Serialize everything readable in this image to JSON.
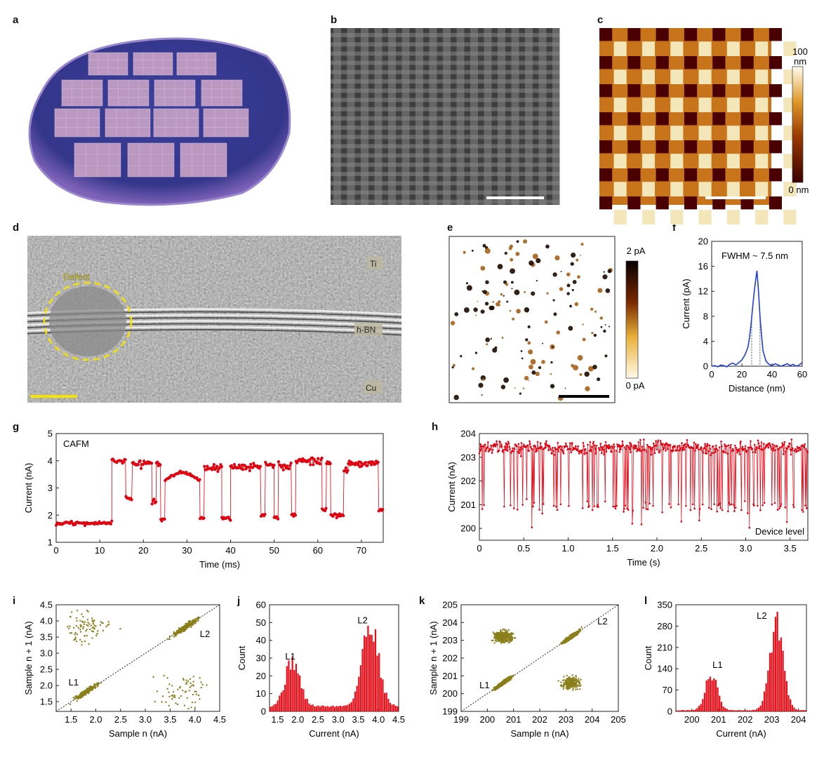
{
  "panels": {
    "a": {
      "letter": "a"
    },
    "b": {
      "letter": "b"
    },
    "c": {
      "letter": "c",
      "colorbar": {
        "max": "100",
        "max_unit": "nm",
        "min": "0 nm"
      }
    },
    "d": {
      "letter": "d",
      "labels": {
        "defect": "Defect",
        "ti": "Ti",
        "hbn": "h-BN",
        "cu": "Cu"
      }
    },
    "e": {
      "letter": "e",
      "colorbar": {
        "max": "2 pA",
        "min": "0 pA"
      }
    },
    "f": {
      "letter": "f"
    },
    "g": {
      "letter": "g"
    },
    "h": {
      "letter": "h"
    },
    "i": {
      "letter": "i"
    },
    "j": {
      "letter": "j"
    },
    "k": {
      "letter": "k"
    },
    "l": {
      "letter": "l"
    }
  },
  "colors": {
    "red": "#e0000f",
    "blue": "#1f3fd6",
    "olive": "#8a7f1a",
    "bar": "#e8101a",
    "yellow": "#f4e200"
  },
  "chart_data": [
    {
      "id": "f",
      "type": "line",
      "annotation": "FWHM ~ 7.5 nm",
      "xlabel": "Distance (nm)",
      "ylabel": "Current (pA)",
      "xlim": [
        0,
        60
      ],
      "ylim": [
        0,
        20
      ],
      "xticks": [
        "0",
        "20",
        "40",
        "60"
      ],
      "yticks": [
        "0",
        "4",
        "8",
        "12",
        "16",
        "20"
      ],
      "x": [
        0,
        2,
        4,
        6,
        8,
        10,
        12,
        14,
        16,
        18,
        20,
        22,
        24,
        25,
        26,
        27,
        28,
        29,
        30,
        31,
        32,
        33,
        34,
        36,
        38,
        40,
        42,
        44,
        46,
        48,
        50,
        52,
        54,
        56,
        58,
        60
      ],
      "y": [
        0,
        0.1,
        -0.1,
        0.2,
        0.1,
        -0.1,
        0.3,
        0.5,
        0.2,
        0.6,
        1.0,
        1.8,
        3.0,
        4.5,
        6.5,
        9.0,
        11.5,
        13.5,
        15.3,
        12.0,
        8.0,
        5.0,
        2.5,
        0.8,
        0.3,
        0.1,
        0.4,
        0.2,
        0.0,
        0.2,
        0.4,
        0.1,
        0.3,
        0.0,
        0.2,
        0.6
      ],
      "fwhm_lines": [
        26.5,
        32
      ]
    },
    {
      "id": "g",
      "type": "line",
      "annotation": "CAFM",
      "xlabel": "Time (ms)",
      "ylabel": "Current (nA)",
      "xlim": [
        0,
        75
      ],
      "ylim": [
        1,
        5
      ],
      "xticks": [
        "0",
        "10",
        "20",
        "30",
        "40",
        "50",
        "60",
        "70"
      ],
      "yticks": [
        "1",
        "2",
        "3",
        "4",
        "5"
      ],
      "segments": [
        [
          0,
          12.8,
          1.7
        ],
        [
          12.8,
          16,
          4.0
        ],
        [
          16,
          17.5,
          2.6
        ],
        [
          17.5,
          22,
          3.9
        ],
        [
          22,
          23,
          2.5
        ],
        [
          23,
          24,
          3.9
        ],
        [
          24,
          25,
          1.8
        ],
        [
          25,
          33,
          3.4
        ],
        [
          33,
          34,
          1.9
        ],
        [
          34,
          38,
          3.7
        ],
        [
          38,
          40,
          1.9
        ],
        [
          40,
          47,
          3.8
        ],
        [
          47,
          48,
          2.0
        ],
        [
          48,
          50,
          3.9
        ],
        [
          50,
          51,
          1.9
        ],
        [
          51,
          54,
          3.8
        ],
        [
          54,
          55,
          2.0
        ],
        [
          55,
          61,
          4.0
        ],
        [
          61,
          62,
          2.2
        ],
        [
          62,
          63,
          3.9
        ],
        [
          63,
          66,
          2.0
        ],
        [
          66,
          67,
          3.7
        ],
        [
          67,
          74,
          3.9
        ],
        [
          74,
          75,
          2.2
        ]
      ]
    },
    {
      "id": "h",
      "type": "line",
      "annotation": "Device level",
      "xlabel": "Time (s)",
      "ylabel": "Current (nA)",
      "xlim": [
        0,
        3.7
      ],
      "ylim": [
        199.5,
        204
      ],
      "xticks": [
        "0",
        "0.5",
        "1.0",
        "1.5",
        "2.0",
        "2.5",
        "3.0",
        "3.5"
      ],
      "yticks": [
        "200",
        "201",
        "202",
        "203",
        "204"
      ],
      "high_level": 203.4,
      "low_level": 200.9
    },
    {
      "id": "i",
      "type": "scatter",
      "xlabel": "Sample n (nA)",
      "ylabel": "Sample n + 1 (nA)",
      "xlim": [
        1.2,
        4.5
      ],
      "ylim": [
        1.2,
        4.5
      ],
      "xticks": [
        "1.5",
        "2.0",
        "2.5",
        "3.0",
        "3.5",
        "4.0",
        "4.5"
      ],
      "yticks": [
        "1.5",
        "2.0",
        "2.5",
        "3.0",
        "3.5",
        "4.0",
        "4.5"
      ],
      "clusters": [
        {
          "label": "L1",
          "center": 1.8
        },
        {
          "label": "L2",
          "center": 3.8
        }
      ]
    },
    {
      "id": "j",
      "type": "bar",
      "xlabel": "Current (nA)",
      "ylabel": "Count",
      "xlim": [
        1.3,
        4.5
      ],
      "ylim": [
        0,
        60
      ],
      "xticks": [
        "1.5",
        "2.0",
        "2.5",
        "3.0",
        "3.5",
        "4.0",
        "4.5"
      ],
      "yticks": [
        "0",
        "10",
        "20",
        "30",
        "40",
        "50",
        "60"
      ],
      "peaks": [
        {
          "label": "L1",
          "center": 1.85,
          "height": 26,
          "width": 0.18
        },
        {
          "label": "L2",
          "center": 3.78,
          "height": 48,
          "width": 0.2
        }
      ],
      "baseline": 3
    },
    {
      "id": "k",
      "type": "scatter",
      "xlabel": "Sample n (nA)",
      "ylabel": "Sample n + 1 (nA)",
      "xlim": [
        199,
        205
      ],
      "ylim": [
        199,
        205
      ],
      "xticks": [
        "199",
        "200",
        "201",
        "202",
        "203",
        "204",
        "205"
      ],
      "yticks": [
        "199",
        "200",
        "201",
        "202",
        "203",
        "204",
        "205"
      ],
      "clusters": [
        {
          "label": "L1",
          "center": 200.6
        },
        {
          "label": "L2",
          "center": 203.2
        }
      ]
    },
    {
      "id": "l",
      "type": "bar",
      "xlabel": "Current (nA)",
      "ylabel": "Count",
      "xlim": [
        199.4,
        204.3
      ],
      "ylim": [
        0,
        350
      ],
      "xticks": [
        "200",
        "201",
        "202",
        "203",
        "204"
      ],
      "yticks": [
        "0",
        "70",
        "140",
        "210",
        "280",
        "350"
      ],
      "peaks": [
        {
          "label": "L1",
          "center": 200.7,
          "height": 120,
          "width": 0.22
        },
        {
          "label": "L2",
          "center": 203.15,
          "height": 290,
          "width": 0.25
        }
      ],
      "baseline": 4
    }
  ]
}
